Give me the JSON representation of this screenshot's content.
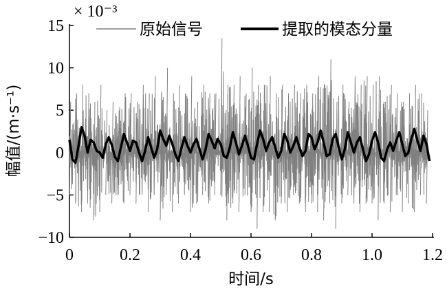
{
  "chart_data": {
    "type": "line",
    "xlabel": "时间/s",
    "ylabel": "幅值/(m·s⁻¹)",
    "y_multiplier": "× 10⁻³",
    "xlim": [
      0,
      1.2
    ],
    "ylim": [
      -10,
      15
    ],
    "x_ticks": [
      0,
      0.2,
      0.4,
      0.6,
      0.8,
      1.0,
      1.2
    ],
    "x_tick_labels": [
      "0",
      "0.2",
      "0.4",
      "0.6",
      "0.8",
      "1.0",
      "1.2"
    ],
    "y_ticks": [
      -10,
      -5,
      0,
      5,
      10,
      15
    ],
    "y_tick_labels": [
      "−10",
      "−5",
      "0",
      "5",
      "10",
      "15"
    ],
    "legend_position": "top",
    "series": [
      {
        "name": "原始信号",
        "color": "#808080",
        "x": [
          0.0,
          0.02,
          0.04,
          0.06,
          0.08,
          0.1,
          0.12,
          0.14,
          0.16,
          0.18,
          0.2,
          0.22,
          0.24,
          0.26,
          0.28,
          0.3,
          0.32,
          0.34,
          0.36,
          0.38,
          0.4,
          0.42,
          0.44,
          0.46,
          0.48,
          0.5,
          0.52,
          0.54,
          0.56,
          0.58,
          0.6,
          0.62,
          0.64,
          0.66,
          0.68,
          0.7,
          0.72,
          0.74,
          0.76,
          0.78,
          0.8,
          0.82,
          0.84,
          0.86,
          0.88,
          0.9,
          0.92,
          0.94,
          0.96,
          0.98,
          1.0,
          1.02,
          1.04,
          1.06,
          1.08,
          1.1,
          1.12,
          1.14,
          1.16,
          1.18
        ],
        "upper": [
          6,
          7,
          8,
          7,
          6,
          8,
          5,
          6,
          5,
          7,
          7,
          6,
          8,
          7,
          9,
          7,
          10,
          7,
          8,
          7,
          9,
          6,
          8,
          7,
          7,
          13.5,
          8,
          8,
          9,
          7,
          10,
          8,
          8,
          9,
          7,
          8,
          7,
          8,
          7,
          8,
          7,
          9,
          8,
          11,
          6,
          8,
          6,
          9,
          8,
          9,
          8,
          9,
          6,
          8,
          7,
          6,
          7,
          8,
          7,
          5
        ],
        "lower": [
          -5,
          -6,
          -7,
          -6,
          -8,
          -7,
          -5,
          -6,
          -5,
          -6,
          -5,
          -6,
          -5,
          -7,
          -5,
          -8,
          -5,
          -7,
          -6,
          -5,
          -7,
          -6,
          -5,
          -6,
          -5,
          -5,
          -8,
          -6,
          -7,
          -5,
          -7,
          -9,
          -7,
          -7,
          -8,
          -6,
          -7,
          -5,
          -6,
          -7,
          -6,
          -7,
          -8,
          -6,
          -9,
          -6,
          -5,
          -6,
          -7,
          -6,
          -6,
          -8,
          -6,
          -7,
          -5,
          -7,
          -6,
          -7,
          -5,
          -6
        ]
      },
      {
        "name": "提取的模态分量",
        "color": "#000000",
        "x": [
          0.0,
          0.01,
          0.02,
          0.03,
          0.04,
          0.05,
          0.06,
          0.07,
          0.08,
          0.09,
          0.1,
          0.11,
          0.12,
          0.13,
          0.14,
          0.15,
          0.16,
          0.17,
          0.18,
          0.19,
          0.2,
          0.21,
          0.22,
          0.23,
          0.24,
          0.25,
          0.26,
          0.27,
          0.28,
          0.29,
          0.3,
          0.31,
          0.32,
          0.33,
          0.34,
          0.35,
          0.36,
          0.37,
          0.38,
          0.39,
          0.4,
          0.41,
          0.42,
          0.43,
          0.44,
          0.45,
          0.46,
          0.47,
          0.48,
          0.49,
          0.5,
          0.51,
          0.52,
          0.53,
          0.54,
          0.55,
          0.56,
          0.57,
          0.58,
          0.59,
          0.6,
          0.61,
          0.62,
          0.63,
          0.64,
          0.65,
          0.66,
          0.67,
          0.68,
          0.69,
          0.7,
          0.71,
          0.72,
          0.73,
          0.74,
          0.75,
          0.76,
          0.77,
          0.78,
          0.79,
          0.8,
          0.81,
          0.82,
          0.83,
          0.84,
          0.85,
          0.86,
          0.87,
          0.88,
          0.89,
          0.9,
          0.91,
          0.92,
          0.93,
          0.94,
          0.95,
          0.96,
          0.97,
          0.98,
          0.99,
          1.0,
          1.01,
          1.02,
          1.03,
          1.04,
          1.05,
          1.06,
          1.07,
          1.08,
          1.09,
          1.1,
          1.11,
          1.12,
          1.13,
          1.14,
          1.15,
          1.16,
          1.17,
          1.18,
          1.19
        ],
        "y": [
          1.5,
          -0.8,
          -1.2,
          0.8,
          3.0,
          2.0,
          0.0,
          1.5,
          1.2,
          0.2,
          0.0,
          -0.6,
          1.0,
          1.8,
          0.9,
          -0.5,
          -1.0,
          0.6,
          2.2,
          1.2,
          0.2,
          1.4,
          1.2,
          0.0,
          -1.0,
          0.2,
          1.8,
          0.6,
          -0.6,
          0.4,
          2.6,
          1.6,
          0.8,
          2.0,
          1.0,
          -0.2,
          -1.0,
          0.5,
          1.8,
          0.8,
          0.0,
          1.0,
          1.6,
          0.4,
          -0.8,
          0.4,
          2.2,
          1.4,
          0.5,
          1.6,
          1.0,
          -0.4,
          -0.6,
          0.6,
          2.4,
          1.2,
          -0.2,
          0.8,
          2.0,
          0.8,
          -0.6,
          -0.8,
          1.0,
          2.6,
          1.6,
          0.2,
          1.2,
          1.8,
          0.6,
          -0.6,
          0.2,
          2.2,
          1.4,
          0.0,
          0.8,
          1.8,
          0.6,
          -0.4,
          0.2,
          2.2,
          1.8,
          0.4,
          1.2,
          2.6,
          1.2,
          -0.4,
          -0.2,
          1.6,
          2.2,
          0.6,
          -0.8,
          0.4,
          2.4,
          1.2,
          0.0,
          1.2,
          1.8,
          0.4,
          -1.0,
          -0.2,
          1.4,
          2.4,
          1.2,
          -0.6,
          -1.0,
          0.4,
          1.2,
          0.2,
          1.4,
          2.4,
          1.0,
          -0.4,
          0.0,
          1.6,
          2.8,
          1.4,
          0.2,
          2.0,
          1.0,
          -1.0
        ]
      }
    ]
  }
}
